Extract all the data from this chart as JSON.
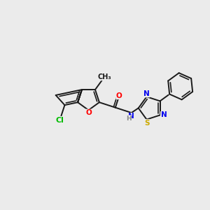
{
  "bg_color": "#ebebeb",
  "bond_color": "#1a1a1a",
  "atom_colors": {
    "Cl": "#00bb00",
    "O": "#ff0000",
    "N": "#0000ee",
    "S": "#ccaa00",
    "H": "#888888"
  },
  "figsize": [
    3.0,
    3.0
  ],
  "dpi": 100,
  "bond_lw": 1.4,
  "inner_lw": 1.2,
  "font_size": 7.5
}
